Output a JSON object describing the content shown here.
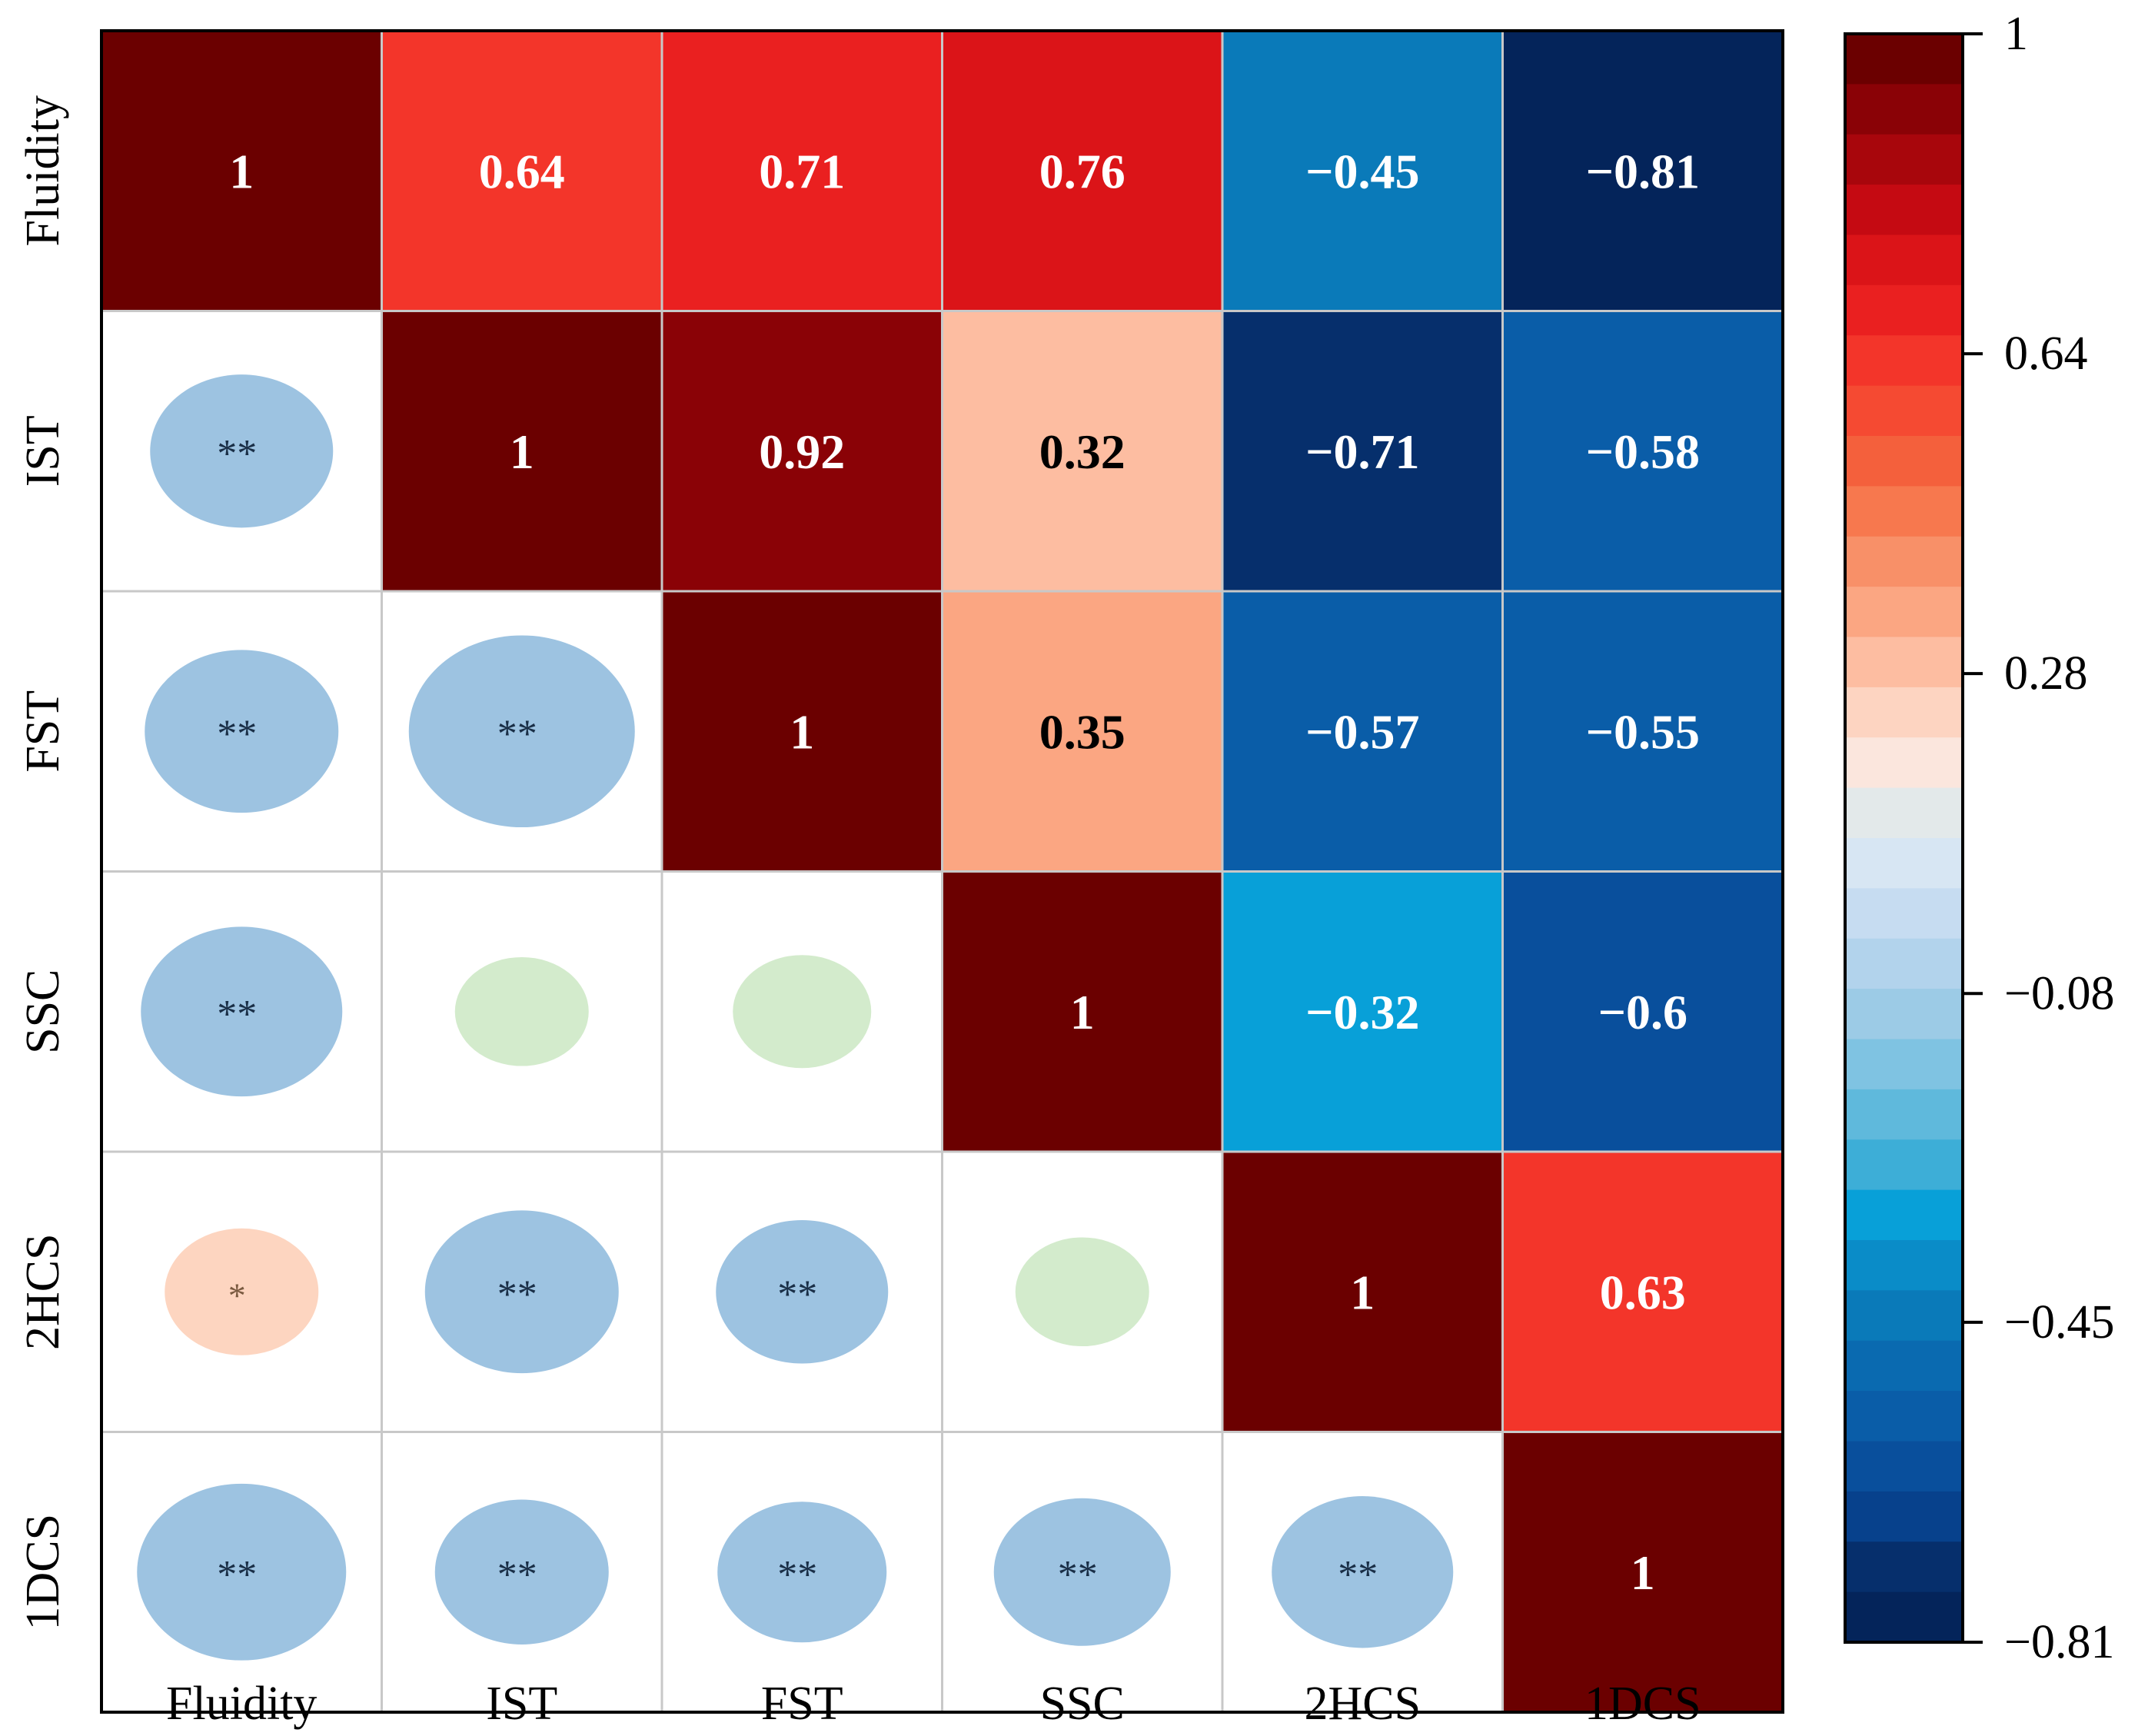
{
  "chart_data": {
    "type": "heatmap",
    "title": "",
    "variables": [
      "Fluidity",
      "IST",
      "FST",
      "SSC",
      "2HCS",
      "1DCS"
    ],
    "upper_triangle_values": [
      [
        "1",
        "0.64",
        "0.71",
        "0.76",
        "−0.45",
        "−0.81"
      ],
      [
        "",
        "1",
        "0.92",
        "0.32",
        "−0.71",
        "−0.58"
      ],
      [
        "",
        "",
        "1",
        "0.35",
        "−0.57",
        "−0.55"
      ],
      [
        "",
        "",
        "",
        "1",
        "−0.32",
        "−0.6"
      ],
      [
        "",
        "",
        "",
        "",
        "1",
        "0.63"
      ],
      [
        "",
        "",
        "",
        "",
        "",
        "1"
      ]
    ],
    "correlations": [
      [
        1,
        0.64,
        0.71,
        0.76,
        -0.45,
        -0.81
      ],
      [
        0.64,
        1,
        0.92,
        0.32,
        -0.71,
        -0.58
      ],
      [
        0.71,
        0.92,
        1,
        0.35,
        -0.57,
        -0.55
      ],
      [
        0.76,
        0.32,
        0.35,
        1,
        -0.32,
        -0.6
      ],
      [
        -0.45,
        -0.71,
        -0.57,
        -0.32,
        1,
        0.63
      ],
      [
        -0.81,
        -0.58,
        -0.55,
        -0.6,
        0.63,
        1
      ]
    ],
    "lower_triangle_significance": [
      [
        "",
        "",
        "",
        "",
        "",
        ""
      ],
      [
        "**",
        "",
        "",
        "",
        "",
        ""
      ],
      [
        "**",
        "**",
        "",
        "",
        "",
        ""
      ],
      [
        "**",
        "",
        "",
        "",
        "",
        ""
      ],
      [
        "*",
        "**",
        "**",
        "",
        "",
        ""
      ],
      [
        "**",
        "**",
        "**",
        "**",
        "**",
        ""
      ]
    ],
    "lower_triangle_marker_color": [
      [
        "",
        "",
        "",
        "",
        "",
        ""
      ],
      [
        "#9dc3e1",
        "",
        "",
        "",
        "",
        ""
      ],
      [
        "#9dc3e1",
        "#9dc3e1",
        "",
        "",
        "",
        ""
      ],
      [
        "#9dc3e1",
        "#d3ebcc",
        "#d3ebcc",
        "",
        "",
        ""
      ],
      [
        "#fdd5c0",
        "#9dc3e1",
        "#9dc3e1",
        "#d3ebcc",
        "",
        ""
      ],
      [
        "#9dc3e1",
        "#9dc3e1",
        "#9dc3e1",
        "#9dc3e1",
        "#9dc3e1",
        ""
      ]
    ],
    "colorbar": {
      "min": -0.81,
      "max": 1,
      "tick_labels": [
        "1",
        "0.64",
        "0.28",
        "−0.08",
        "−0.45",
        "−0.81"
      ],
      "tick_values": [
        1,
        0.64,
        0.28,
        -0.08,
        -0.45,
        -0.81
      ],
      "colors_top_to_bottom": [
        "#6b0000",
        "#8a0206",
        "#a8060c",
        "#c50a12",
        "#db1418",
        "#ea2020",
        "#f3352a",
        "#f54a32",
        "#f4603c",
        "#f7784e",
        "#f89068",
        "#fba682",
        "#fdbda1",
        "#fdd4c1",
        "#fbe6dd",
        "#e3e9ea",
        "#d7e6f3",
        "#c6dcf1",
        "#b2d3ec",
        "#9ccbe6",
        "#7fc3e2",
        "#5fb9dc",
        "#3daed7",
        "#08a0d8",
        "#0a8cc8",
        "#0a7ab9",
        "#0a6ab0",
        "#0a5da8",
        "#094f9c",
        "#07418c",
        "#062f6c",
        "#04245a"
      ]
    },
    "colors": {
      "cell_border": "#c8c8c8",
      "text_light": "#ffffff",
      "text_dark": "#000000",
      "star_text": "#1a2f47",
      "star_text_light": "#7a5a40"
    }
  }
}
